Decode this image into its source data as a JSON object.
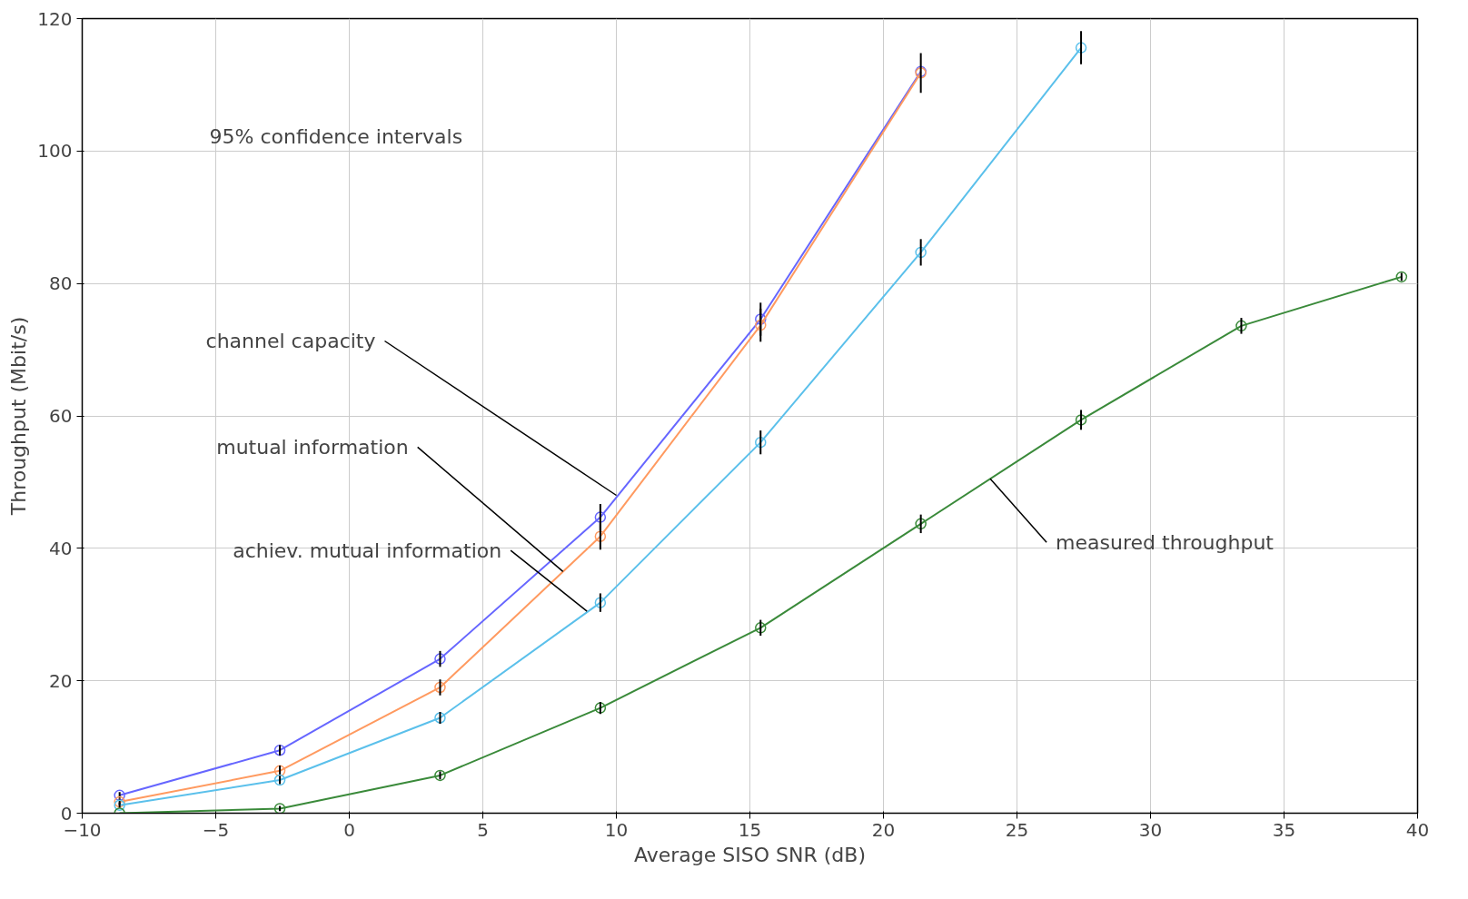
{
  "chart_data": {
    "type": "line",
    "xlabel": "Average SISO SNR (dB)",
    "ylabel": "Throughput (Mbit/s)",
    "xlim": [
      -10,
      40
    ],
    "ylim": [
      0,
      120
    ],
    "xticks": [
      -10,
      -5,
      0,
      5,
      10,
      15,
      20,
      25,
      30,
      35,
      40
    ],
    "yticks": [
      0,
      20,
      40,
      60,
      80,
      100,
      120
    ],
    "grid": true,
    "marker": "circle",
    "line_style": "solid",
    "series": [
      {
        "color": "#6666ff",
        "x": [
          -8.6,
          -2.6,
          3.4,
          9.4,
          15.4,
          21.4
        ],
        "values": [
          2.7,
          9.5,
          23.3,
          44.7,
          74.6,
          112
        ],
        "errors": [
          0.5,
          0.8,
          1.2,
          2,
          2.5,
          null
        ]
      },
      {
        "color": "#ff9a60",
        "x": [
          -8.6,
          -2.6,
          3.4,
          9.4,
          15.4,
          21.4
        ],
        "values": [
          1.7,
          6.4,
          19,
          41.8,
          73.7,
          111.8
        ],
        "errors": [
          0.5,
          0.8,
          1.2,
          2,
          2.5,
          3
        ]
      },
      {
        "color": "#5bc0eb",
        "x": [
          -8.6,
          -2.6,
          3.4,
          9.4,
          15.4,
          21.4,
          27.4
        ],
        "values": [
          1.2,
          5,
          14.4,
          31.8,
          56,
          84.7,
          115.6
        ],
        "errors": [
          0.4,
          0.6,
          0.9,
          1.4,
          1.8,
          2,
          2.5
        ]
      },
      {
        "color": "#3a8a3a",
        "x": [
          -8.6,
          -2.6,
          3.4,
          9.4,
          15.4,
          21.4,
          27.4,
          33.4,
          39.4
        ],
        "values": [
          0,
          0.7,
          5.7,
          15.9,
          28,
          43.7,
          59.4,
          73.6,
          81
        ],
        "errors": [
          null,
          0.4,
          0.6,
          0.9,
          1.2,
          1.4,
          1.5,
          1.2,
          0.6
        ]
      }
    ],
    "annotations": [
      "95% confidence intervals",
      {
        "text": "channel capacity",
        "x": 10,
        "y": 48
      },
      {
        "text": "mutual information",
        "x": 8,
        "y": 36.5
      },
      {
        "text": "achiev. mutual information",
        "x": 8.9,
        "y": 30.5
      },
      {
        "text": "measured throughput",
        "x": 24,
        "y": 50.5
      }
    ]
  }
}
